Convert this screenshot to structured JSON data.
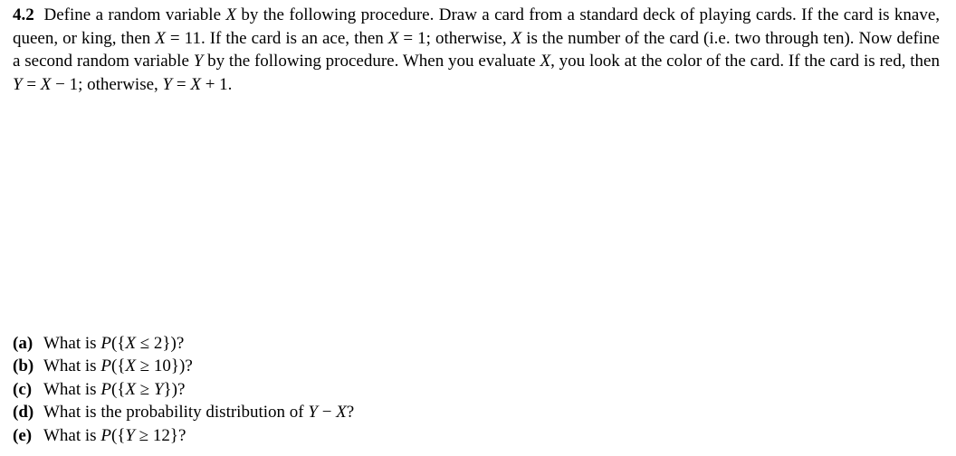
{
  "problem": {
    "number": "4.2",
    "statement_html": "Define a random variable <span class='italic'>X</span> by the following procedure. Draw a card from a standard deck of playing cards. If the card is knave, queen, or king, then <span class='italic'>X</span> = 11. If the card is an ace, then <span class='italic'>X</span> = 1; otherwise, <span class='italic'>X</span> is the number of the card (i.e. two through ten). Now define a second random variable <span class='italic'>Y</span> by the following procedure. When you evaluate <span class='italic'>X</span>, you look at the color of the card. If the card is red, then <span class='italic'>Y</span> = <span class='italic'>X</span> − 1; otherwise, <span class='italic'>Y</span> = <span class='italic'>X</span> + 1."
  },
  "parts": [
    {
      "label": "(a)",
      "text_html": "What is <span class='italic'>P</span>({<span class='italic'>X</span> ≤ 2})?"
    },
    {
      "label": "(b)",
      "text_html": "What is <span class='italic'>P</span>({<span class='italic'>X</span> ≥ 10})?"
    },
    {
      "label": "(c)",
      "text_html": "What is <span class='italic'>P</span>({<span class='italic'>X</span> ≥ <span class='italic'>Y</span>})?"
    },
    {
      "label": "(d)",
      "text_html": "What is the probability distribution of <span class='italic'>Y</span> − <span class='italic'>X</span>?"
    },
    {
      "label": "(e)",
      "text_html": "What is <span class='italic'>P</span>({<span class='italic'>Y</span> ≥ 12}?"
    }
  ],
  "colors": {
    "background": "#ffffff",
    "text": "#000000"
  },
  "typography": {
    "font_family": "Times New Roman",
    "font_size_pt": 14,
    "line_height": 1.35
  }
}
